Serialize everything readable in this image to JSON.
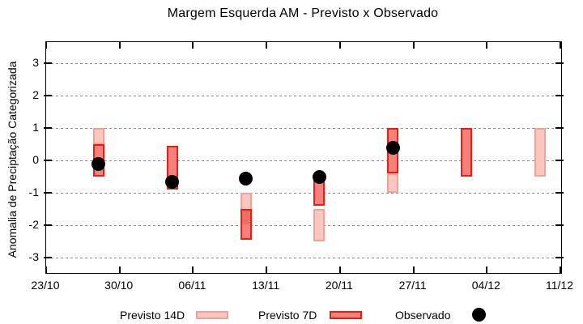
{
  "chart_data": {
    "type": "bar",
    "subtype": "floating-range-bars-with-scatter-overlay",
    "title": "Margem Esquerda AM - Previsto x Observado",
    "xlabel": "",
    "ylabel": "Anomalia de Preciptação Categorizada",
    "yticks": [
      3,
      2,
      1,
      0,
      -1,
      -2,
      -3
    ],
    "ylim": [
      -3.48,
      3.65
    ],
    "xticks": [
      "23/10",
      "30/10",
      "06/11",
      "13/11",
      "20/11",
      "27/11",
      "04/12",
      "11/12"
    ],
    "x_days_per_tick": 7,
    "grid": "horizontal dotted gray",
    "legend_position": "bottom-outside",
    "overlap_color": "#ee6d64",
    "series": [
      {
        "name": "Previsto 14D",
        "type": "range-bar",
        "fill": "#f9c7bf",
        "border": "#f1a299",
        "points": [
          {
            "x_day": 5,
            "date": "28/10",
            "low": 0.5,
            "high": 1.0
          },
          {
            "x_day": 19,
            "date": "11/11",
            "low": -2.0,
            "high": -1.0
          },
          {
            "x_day": 26,
            "date": "18/11",
            "low": -2.5,
            "high": -1.5
          },
          {
            "x_day": 33,
            "date": "25/11",
            "low": -1.0,
            "high": -0.4
          },
          {
            "x_day": 47,
            "date": "09/12",
            "low": -0.5,
            "high": 1.0
          }
        ]
      },
      {
        "name": "Previsto 7D",
        "type": "range-bar",
        "fill": "#f5827a",
        "border": "#e51f15",
        "points": [
          {
            "x_day": 5,
            "date": "28/10",
            "low": -0.5,
            "high": 0.5
          },
          {
            "x_day": 12,
            "date": "04/11",
            "low": -0.9,
            "high": 0.45
          },
          {
            "x_day": 19,
            "date": "11/11",
            "low": -2.45,
            "high": -1.5
          },
          {
            "x_day": 26,
            "date": "18/11",
            "low": -1.4,
            "high": -0.4
          },
          {
            "x_day": 33,
            "date": "25/11",
            "low": -0.4,
            "high": 1.0
          },
          {
            "x_day": 40,
            "date": "02/12",
            "low": -0.5,
            "high": 1.0
          }
        ]
      },
      {
        "name": "Observado",
        "type": "scatter",
        "fill": "#000000",
        "points": [
          {
            "x_day": 5,
            "date": "28/10",
            "y": -0.1
          },
          {
            "x_day": 12,
            "date": "04/11",
            "y": -0.65
          },
          {
            "x_day": 19,
            "date": "11/11",
            "y": -0.55
          },
          {
            "x_day": 26,
            "date": "18/11",
            "y": -0.5
          },
          {
            "x_day": 33,
            "date": "25/11",
            "y": 0.4
          }
        ]
      }
    ]
  }
}
